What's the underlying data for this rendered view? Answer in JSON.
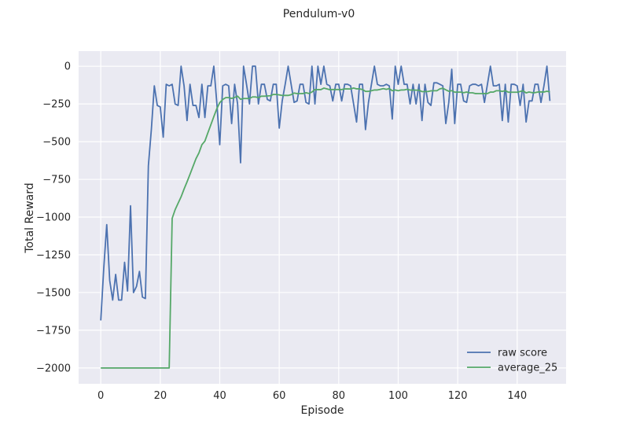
{
  "chart_data": {
    "type": "line",
    "title": "Pendulum-v0",
    "xlabel": "Episode",
    "ylabel": "Total Reward",
    "xlim": [
      -7.45,
      156.45
    ],
    "ylim": [
      -2105,
      100
    ],
    "xticks": [
      0,
      20,
      40,
      60,
      80,
      100,
      120,
      140
    ],
    "yticks": [
      0,
      -250,
      -500,
      -750,
      -1000,
      -1250,
      -1500,
      -1750,
      -2000
    ],
    "ytick_labels": [
      "0",
      "−250",
      "−500",
      "−750",
      "−1000",
      "−1250",
      "−1500",
      "−1750",
      "−2000"
    ],
    "grid": true,
    "legend_position": "lower right",
    "series": [
      {
        "name": "raw score",
        "color": "#4c72b0",
        "values": [
          -1685,
          -1340,
          -1050,
          -1420,
          -1550,
          -1380,
          -1550,
          -1550,
          -1300,
          -1490,
          -925,
          -1500,
          -1460,
          -1360,
          -1530,
          -1540,
          -660,
          -420,
          -130,
          -260,
          -270,
          -470,
          -120,
          -130,
          -120,
          -250,
          -260,
          0,
          -130,
          -360,
          -120,
          -260,
          -260,
          -340,
          -120,
          -340,
          -130,
          -130,
          0,
          -240,
          -520,
          -130,
          -120,
          -130,
          -380,
          -120,
          -250,
          -640,
          0,
          -120,
          -250,
          0,
          0,
          -250,
          -120,
          -120,
          -220,
          -230,
          -120,
          -120,
          -410,
          -230,
          -120,
          0,
          -120,
          -240,
          -230,
          -120,
          -120,
          -240,
          -250,
          0,
          -250,
          0,
          -120,
          0,
          -120,
          -130,
          -230,
          -120,
          -120,
          -230,
          -120,
          -120,
          -130,
          -250,
          -370,
          -120,
          -120,
          -420,
          -240,
          -120,
          0,
          -120,
          -130,
          -130,
          -120,
          -130,
          -350,
          0,
          -120,
          0,
          -120,
          -120,
          -250,
          -120,
          -250,
          -120,
          -360,
          -120,
          -240,
          -260,
          -110,
          -110,
          -120,
          -130,
          -380,
          -240,
          -20,
          -380,
          -120,
          -120,
          -230,
          -240,
          -130,
          -120,
          -120,
          -130,
          -120,
          -240,
          -120,
          0,
          -130,
          -130,
          -120,
          -360,
          -120,
          -370,
          -120,
          -120,
          -130,
          -260,
          -120,
          -370,
          -230,
          -230,
          -120,
          -120,
          -240,
          -130,
          0,
          -230
        ],
        "moving_average": {
          "name": "average_25",
          "color": "#55a868",
          "window": 25,
          "initial_value": -2000
        }
      }
    ]
  }
}
